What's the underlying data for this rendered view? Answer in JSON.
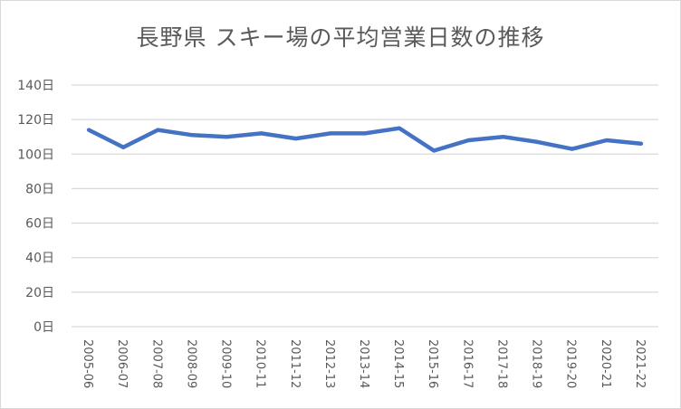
{
  "chart_data": {
    "type": "line",
    "title": "長野県 スキー場の平均営業日数の推移",
    "xlabel": "",
    "ylabel": "",
    "ylim": [
      0,
      140
    ],
    "yticks": [
      0,
      20,
      40,
      60,
      80,
      100,
      120,
      140
    ],
    "ytick_suffix": "日",
    "grid": true,
    "legend": null,
    "categories": [
      "2005-06",
      "2006-07",
      "2007-08",
      "2008-09",
      "2009-10",
      "2010-11",
      "2011-12",
      "2012-13",
      "2013-14",
      "2014-15",
      "2015-16",
      "2016-17",
      "2017-18",
      "2018-19",
      "2019-20",
      "2020-21",
      "2021-22"
    ],
    "series": [
      {
        "name": "平均営業日数",
        "color": "#4472c4",
        "values": [
          114,
          104,
          114,
          111,
          110,
          112,
          109,
          112,
          112,
          115,
          102,
          108,
          110,
          107,
          103,
          108,
          106
        ]
      }
    ]
  },
  "colors": {
    "line": "#4472c4",
    "grid": "#d9d9d9",
    "text": "#595959"
  }
}
